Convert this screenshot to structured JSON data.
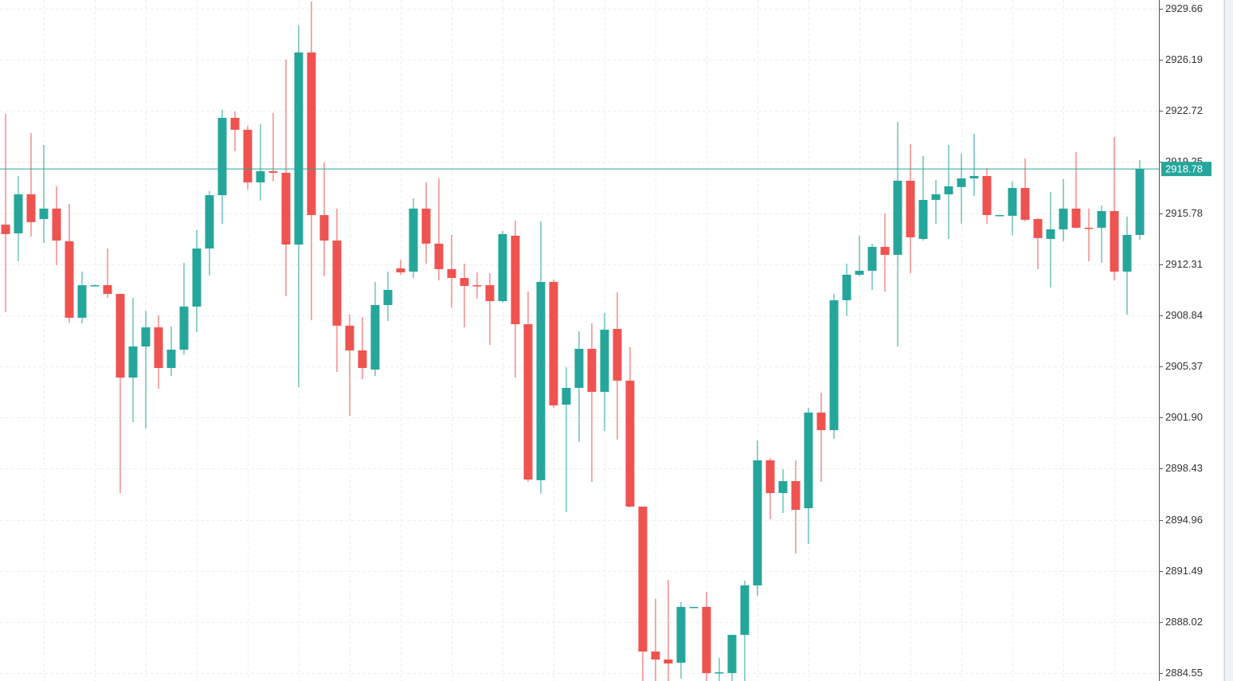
{
  "chart_data": {
    "type": "candlestick",
    "up_color": "#26a69a",
    "down_color": "#ef5350",
    "ylim": [
      2884.02,
      2930.25
    ],
    "yticks": [
      2929.66,
      2926.19,
      2922.72,
      2919.25,
      2915.78,
      2912.31,
      2908.84,
      2905.37,
      {
        "value": 2901.9,
        "label": "2901.90"
      },
      2898.43,
      2894.96,
      2891.49,
      2888.02,
      2884.55
    ],
    "grid": true,
    "last_price": 2918.78,
    "open": [
      2915.0,
      2914.41,
      2917.06,
      2915.38,
      2916.09,
      2913.87,
      2908.68,
      2910.89,
      2910.89,
      2910.3,
      2904.62,
      2906.73,
      2908.03,
      2905.27,
      2906.51,
      2909.44,
      2913.38,
      2917.0,
      2922.25,
      2921.44,
      2917.87,
      2918.63,
      2918.52,
      2913.65,
      2926.69,
      2915.65,
      2913.92,
      2908.14,
      2906.46,
      2905.16,
      2909.54,
      2912.03,
      2911.81,
      2916.09,
      2913.71,
      2911.98,
      2911.38,
      2910.89,
      2910.89,
      2909.81,
      2914.25,
      2908.24,
      2897.65,
      2911.11,
      2902.78,
      2903.92,
      2906.57,
      2903.65,
      2907.92,
      2904.41,
      2895.86,
      2886.02,
      2885.48,
      2885.26,
      2889.05,
      2889.05,
      2884.56,
      2884.56,
      2887.15,
      2890.51,
      2899.0,
      2896.78,
      2897.59,
      2895.75,
      2902.24,
      2901.05,
      2909.87,
      2911.6,
      2911.87,
      2913.49,
      2912.95,
      2917.98,
      2914.03,
      2916.68,
      2917.06,
      2917.55,
      2918.14,
      2918.3,
      2915.65,
      2915.6,
      2917.49,
      2915.38,
      2914.03,
      2914.68,
      2916.09,
      2914.79,
      2914.79,
      2915.92,
      2911.81,
      2914.3
    ],
    "high": [
      2922.52,
      2918.3,
      2921.22,
      2920.41,
      2917.6,
      2916.41,
      2911.81,
      2910.95,
      2913.38,
      2910.3,
      2910.03,
      2909.17,
      2908.84,
      2908.08,
      2912.41,
      2914.63,
      2917.28,
      2922.79,
      2922.68,
      2921.71,
      2921.82,
      2922.58,
      2926.2,
      2928.52,
      2930.15,
      2919.22,
      2916.09,
      2908.89,
      2908.73,
      2911.11,
      2911.81,
      2912.62,
      2916.79,
      2917.87,
      2918.14,
      2914.3,
      2912.35,
      2911.76,
      2911.71,
      2914.57,
      2915.28,
      2910.46,
      2915.22,
      2911.27,
      2905.32,
      2907.76,
      2908.3,
      2909.0,
      2910.41,
      2906.68,
      2895.86,
      2889.59,
      2890.89,
      2889.37,
      2889.05,
      2890.07,
      2885.59,
      2887.15,
      2890.83,
      2900.35,
      2899.16,
      2898.4,
      2899.0,
      2902.56,
      2903.59,
      2910.3,
      2912.35,
      2914.25,
      2913.71,
      2915.76,
      2921.98,
      2920.47,
      2919.66,
      2918.03,
      2920.41,
      2919.82,
      2921.17,
      2918.85,
      2915.65,
      2917.93,
      2919.5,
      2915.44,
      2917.22,
      2918.09,
      2919.93,
      2916.09,
      2916.3,
      2920.95,
      2915.54,
      2919.38
    ],
    "low": [
      2909.06,
      2912.52,
      2914.19,
      2913.76,
      2912.25,
      2908.35,
      2908.3,
      2910.89,
      2910.03,
      2896.78,
      2901.59,
      2901.16,
      2903.86,
      2904.73,
      2906.19,
      2907.7,
      2911.54,
      2915.06,
      2919.98,
      2917.39,
      2916.63,
      2917.93,
      2910.14,
      2903.97,
      2908.51,
      2911.49,
      2905.0,
      2902.02,
      2904.51,
      2904.73,
      2908.46,
      2911.6,
      2911.38,
      2912.35,
      2911.22,
      2909.38,
      2908.03,
      2909.98,
      2906.84,
      2909.7,
      2904.62,
      2897.54,
      2896.73,
      2902.56,
      2895.48,
      2900.24,
      2897.54,
      2901.0,
      2900.4,
      2895.81,
      2884.02,
      2884.02,
      2884.02,
      2884.18,
      2889.05,
      2884.02,
      2884.02,
      2884.02,
      2884.02,
      2889.8,
      2895.0,
      2895.43,
      2892.67,
      2893.32,
      2897.54,
      2900.46,
      2908.79,
      2911.49,
      2910.57,
      2910.46,
      2906.73,
      2911.71,
      2913.92,
      2915.06,
      2914.03,
      2915.06,
      2916.95,
      2915.06,
      2915.65,
      2914.3,
      2915.22,
      2911.98,
      2910.73,
      2913.87,
      2914.74,
      2912.52,
      2912.41,
      2911.22,
      2908.89,
      2913.97
    ],
    "close": [
      2914.36,
      2917.06,
      2915.17,
      2916.09,
      2913.92,
      2908.68,
      2910.89,
      2910.89,
      2910.3,
      2904.62,
      2906.73,
      2908.03,
      2905.27,
      2906.51,
      2909.44,
      2913.38,
      2917.0,
      2922.25,
      2921.44,
      2917.87,
      2918.63,
      2918.52,
      2913.65,
      2926.69,
      2915.65,
      2913.92,
      2908.14,
      2906.46,
      2905.27,
      2909.54,
      2910.57,
      2911.76,
      2916.09,
      2913.71,
      2911.98,
      2911.38,
      2910.84,
      2910.84,
      2909.81,
      2914.36,
      2908.24,
      2897.7,
      2911.11,
      2902.73,
      2903.92,
      2906.57,
      2903.65,
      2907.87,
      2904.41,
      2895.86,
      2886.02,
      2885.48,
      2885.21,
      2889.05,
      2889.05,
      2884.56,
      2884.61,
      2887.15,
      2890.51,
      2899.0,
      2896.78,
      2897.59,
      2895.64,
      2902.24,
      2901.05,
      2909.87,
      2911.6,
      2911.87,
      2913.49,
      2912.95,
      2917.98,
      2914.14,
      2916.68,
      2917.06,
      2917.6,
      2918.14,
      2918.3,
      2915.65,
      2915.65,
      2917.49,
      2915.33,
      2914.09,
      2914.68,
      2916.09,
      2914.79,
      2914.74,
      2915.92,
      2911.81,
      2914.3,
      2918.78
    ]
  }
}
